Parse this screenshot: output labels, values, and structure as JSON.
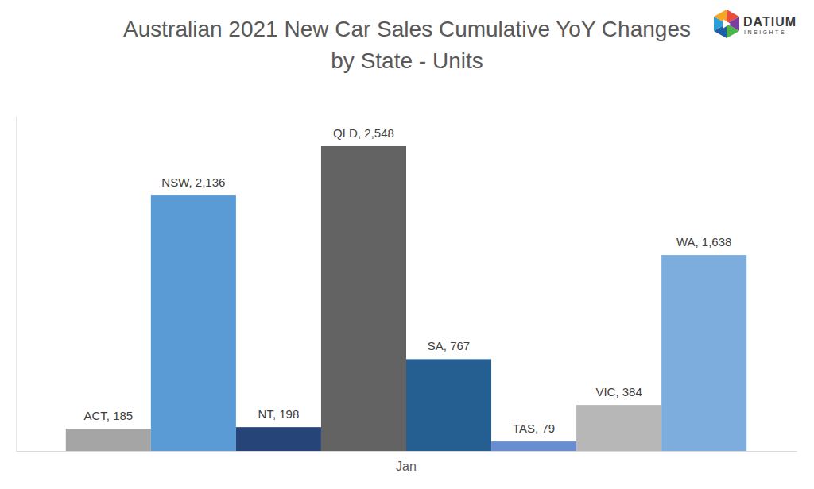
{
  "chart_data": {
    "type": "bar",
    "title": "Australian 2021 New Car Sales Cumulative YoY Changes by State - Units",
    "categories": [
      "Jan"
    ],
    "series": [
      {
        "name": "ACT",
        "color": "#a5a5a5",
        "values": [
          185
        ],
        "value_labels": [
          "ACT, 185"
        ]
      },
      {
        "name": "NSW",
        "color": "#5b9bd5",
        "values": [
          2136
        ],
        "value_labels": [
          "NSW, 2,136"
        ]
      },
      {
        "name": "NT",
        "color": "#264478",
        "values": [
          198
        ],
        "value_labels": [
          "NT, 198"
        ]
      },
      {
        "name": "QLD",
        "color": "#636363",
        "values": [
          2548
        ],
        "value_labels": [
          "QLD, 2,548"
        ]
      },
      {
        "name": "SA",
        "color": "#255e91",
        "values": [
          767
        ],
        "value_labels": [
          "SA, 767"
        ]
      },
      {
        "name": "TAS",
        "color": "#698ed0",
        "values": [
          79
        ],
        "value_labels": [
          "TAS, 79"
        ]
      },
      {
        "name": "VIC",
        "color": "#b7b7b7",
        "values": [
          384
        ],
        "value_labels": [
          "VIC, 384"
        ]
      },
      {
        "name": "WA",
        "color": "#7caddd",
        "values": [
          1638
        ],
        "value_labels": [
          "WA, 1,638"
        ]
      }
    ],
    "ylim": [
      0,
      2800
    ],
    "yticks": [],
    "grid": false,
    "data_labels": true,
    "tick_labels": "x",
    "annotations": [
      "DATIUM",
      "INSIGHTS"
    ]
  }
}
